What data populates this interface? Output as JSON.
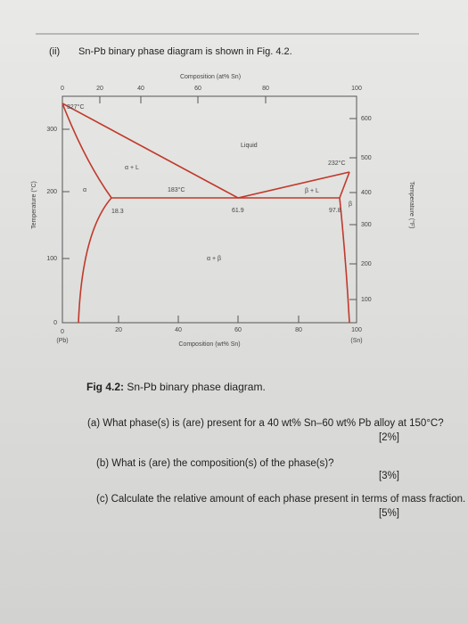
{
  "header": {
    "number": "(ii)",
    "text": "Sn-Pb binary phase diagram is shown in Fig. 4.2."
  },
  "figure": {
    "top_axis_title": "Composition (at% Sn)",
    "top_ticks": [
      "0",
      "20",
      "40",
      "60",
      "80",
      "100"
    ],
    "bottom_ticks": [
      "0",
      "20",
      "40",
      "60",
      "80",
      "100"
    ],
    "bottom_axis_title": "Composition (wt% Sn)",
    "left_end": "(Pb)",
    "right_end": "(Sn)",
    "left_axis_title": "Temperature (°C)",
    "left_ticks": [
      "300",
      "200",
      "100",
      "0"
    ],
    "right_axis_title": "Temperature (°F)",
    "right_ticks": [
      "600",
      "500",
      "400",
      "300",
      "200",
      "100"
    ],
    "annotations": {
      "pb_melt": "327°C",
      "liquid": "Liquid",
      "sn_melt": "232°C",
      "alpha_l": "α + L",
      "beta_l": "β + L",
      "eutectic_t": "183°C",
      "alpha": "α",
      "c_alpha": "18.3",
      "c_eut": "61.9",
      "c_beta": "97.8",
      "beta": "β",
      "alpha_beta": "α + β"
    },
    "caption_label": "Fig 4.2:",
    "caption_text": "Sn-Pb binary phase diagram."
  },
  "questions": [
    {
      "text": "(a) What phase(s) is (are) present for a 40 wt% Sn–60 wt% Pb alloy at 150°C?",
      "marks": "[2%]"
    },
    {
      "text": "(b) What is (are) the composition(s) of the phase(s)?",
      "marks": "[3%]"
    },
    {
      "text": "(c) Calculate the relative amount of each phase present in terms of mass fraction.",
      "marks": "[5%]"
    }
  ]
}
